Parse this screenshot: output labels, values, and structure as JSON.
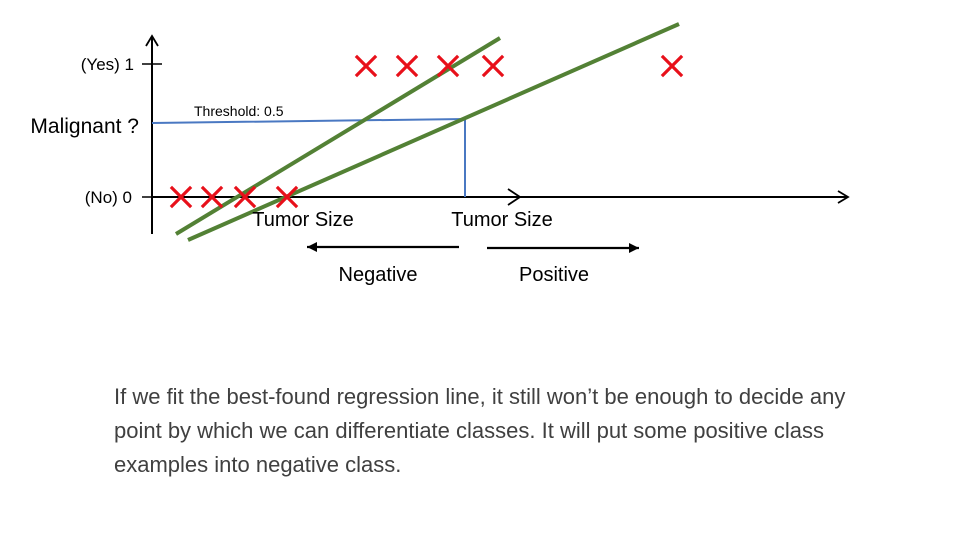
{
  "diagram": {
    "y_axis": {
      "yes_label": "(Yes) 1",
      "no_label": "(No) 0",
      "question_label": "Malignant ?"
    },
    "threshold_label": "Threshold: 0.5",
    "x_axis_labels": [
      "Tumor Size",
      "Tumor Size"
    ],
    "direction_labels": {
      "negative": "Negative",
      "positive": "Positive"
    },
    "marker_symbol": "x-mark",
    "colors": {
      "marker": "#e8101a",
      "fit_line": "#538135",
      "threshold_line": "#4a78c2",
      "axis": "#000000"
    }
  },
  "caption": "If we fit the best-found regression line, it still won’t be enough to decide any point by which we can differentiate classes. It will put some positive class examples into negative class."
}
